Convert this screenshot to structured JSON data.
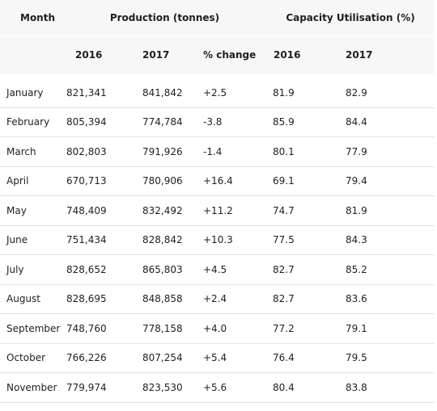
{
  "header": {
    "month": "Month",
    "production": "Production (tonnes)",
    "capacity": "Capacity Utilisation (%)",
    "prod_2016": "2016",
    "prod_2017": "2017",
    "pct_change": "% change",
    "cap_2016": "2016",
    "cap_2017": "2017"
  },
  "rows": [
    {
      "month": "January",
      "p2016": "821,341",
      "p2017": "841,842",
      "change": "+2.5",
      "u2016": "81.9",
      "u2017": "82.9"
    },
    {
      "month": "February",
      "p2016": "805,394",
      "p2017": "774,784",
      "change": "-3.8",
      "u2016": "85.9",
      "u2017": "84.4"
    },
    {
      "month": "March",
      "p2016": "802,803",
      "p2017": "791,926",
      "change": " -1.4",
      "u2016": "80.1",
      "u2017": "77.9"
    },
    {
      "month": "April",
      "p2016": "670,713",
      "p2017": "780,906",
      "change": "+16.4",
      "u2016": "69.1",
      "u2017": "79.4"
    },
    {
      "month": "May",
      "p2016": "748,409",
      "p2017": "832,492",
      "change": "+11.2",
      "u2016": "74.7",
      "u2017": "81.9"
    },
    {
      "month": "June",
      "p2016": "751,434",
      "p2017": "828,842",
      "change": "+10.3",
      "u2016": "77.5",
      "u2017": "84.3"
    },
    {
      "month": "July",
      "p2016": "828,652",
      "p2017": "865,803",
      "change": "+4.5",
      "u2016": "82.7",
      "u2017": "85.2"
    },
    {
      "month": "August",
      "p2016": "828,695",
      "p2017": "848,858",
      "change": "+2.4",
      "u2016": "82.7",
      "u2017": "83.6"
    },
    {
      "month": "September",
      "p2016": "748,760",
      "p2017": "778,158",
      "change": "+4.0",
      "u2016": "77.2",
      "u2017": "79.1"
    },
    {
      "month": "October",
      "p2016": "766,226",
      "p2017": "807,254",
      "change": "+5.4",
      "u2016": "76.4",
      "u2017": "79.5"
    },
    {
      "month": "November",
      "p2016": "779,974",
      "p2017": "823,530",
      "change": "+5.6",
      "u2016": "80.4",
      "u2017": "83.8"
    }
  ]
}
